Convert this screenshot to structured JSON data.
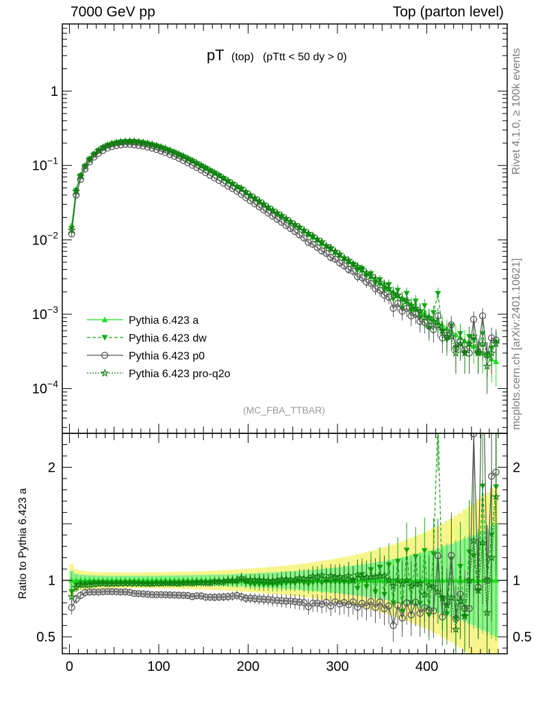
{
  "header": {
    "left": "7000 GeV pp",
    "right": "Top (parton level)"
  },
  "side_labels": {
    "rivet": "Rivet 4.1.0, ≥ 100k events",
    "mcplots": "mcplots.cern.ch [arXiv:2401.10621]"
  },
  "colors": {
    "a": "#22dd22",
    "dw": "#11aa11",
    "p0": "#555555",
    "pro_q2o": "#117711",
    "band_yellow": "#f7f58a",
    "band_green": "#8ef08e"
  },
  "chart_data": [
    {
      "type": "line",
      "title_main": "pT",
      "title_sub": "(top)",
      "title_cond": "(pTtt < 50 dy > 0)",
      "watermark": "(MC_FBA_TTBAR)",
      "yscale": "log",
      "ylim": [
        2.5e-05,
        8
      ],
      "xlim": [
        -8,
        490
      ],
      "ytick_labels": [
        "10^-4",
        "10^-3",
        "10^-2",
        "10^-1",
        "1"
      ],
      "ytick_values": [
        0.0001,
        0.001,
        0.01,
        0.1,
        1
      ],
      "legend_position": "bottom-left",
      "x": [
        2.5,
        7.5,
        12.5,
        17.5,
        22.5,
        27.5,
        32.5,
        37.5,
        42.5,
        47.5,
        52.5,
        57.5,
        62.5,
        67.5,
        72.5,
        77.5,
        82.5,
        87.5,
        92.5,
        97.5,
        102.5,
        107.5,
        112.5,
        117.5,
        122.5,
        127.5,
        132.5,
        137.5,
        142.5,
        147.5,
        152.5,
        157.5,
        162.5,
        167.5,
        172.5,
        177.5,
        182.5,
        187.5,
        192.5,
        197.5,
        202.5,
        207.5,
        212.5,
        217.5,
        222.5,
        227.5,
        232.5,
        237.5,
        242.5,
        247.5,
        252.5,
        257.5,
        262.5,
        267.5,
        272.5,
        277.5,
        282.5,
        287.5,
        292.5,
        297.5,
        302.5,
        307.5,
        312.5,
        317.5,
        322.5,
        327.5,
        332.5,
        337.5,
        342.5,
        347.5,
        352.5,
        357.5,
        362.5,
        367.5,
        372.5,
        377.5,
        382.5,
        387.5,
        392.5,
        397.5,
        402.5,
        407.5,
        412.5,
        417.5,
        422.5,
        427.5,
        432.5,
        437.5,
        442.5,
        447.5,
        452.5,
        457.5,
        462.5,
        467.5,
        472.5,
        477.5
      ],
      "series": [
        {
          "name": "Pythia 6.423 a",
          "key": "a",
          "marker": "triangle-up",
          "dash": "solid",
          "values": [
            0.0158,
            0.048,
            0.075,
            0.101,
            0.125,
            0.145,
            0.163,
            0.178,
            0.191,
            0.2,
            0.207,
            0.212,
            0.215,
            0.216,
            0.215,
            0.212,
            0.208,
            0.202,
            0.196,
            0.188,
            0.18,
            0.171,
            0.162,
            0.153,
            0.144,
            0.135,
            0.126,
            0.118,
            0.109,
            0.101,
            0.094,
            0.087,
            0.08,
            0.074,
            0.068,
            0.062,
            0.057,
            0.052,
            0.048,
            0.044,
            0.0398,
            0.0364,
            0.0332,
            0.0303,
            0.0276,
            0.0252,
            0.023,
            0.021,
            0.0191,
            0.0174,
            0.0159,
            0.0145,
            0.0132,
            0.012,
            0.0109,
            0.0099,
            0.009,
            0.0082,
            0.0075,
            0.0068,
            0.0062,
            0.0056,
            0.0051,
            0.0047,
            0.0042,
            0.0039,
            0.0035,
            0.0032,
            0.0029,
            0.0026,
            0.0024,
            0.0022,
            0.002,
            0.0018,
            0.00165,
            0.0015,
            0.00137,
            0.00124,
            0.00113,
            0.00103,
            0.00094,
            0.00085,
            0.00078,
            0.00071,
            0.00064,
            0.00059,
            0.00053,
            0.00049,
            0.00044,
            0.0004,
            0.00037,
            0.00033,
            0.0003,
            0.00028,
            0.00025,
            0.00023
          ]
        },
        {
          "name": "Pythia 6.423 dw",
          "key": "dw",
          "marker": "triangle-down",
          "dash": "dashed",
          "values": [
            0.0142,
            0.046,
            0.073,
            0.098,
            0.122,
            0.142,
            0.159,
            0.174,
            0.186,
            0.195,
            0.202,
            0.207,
            0.21,
            0.211,
            0.21,
            0.206,
            0.202,
            0.196,
            0.19,
            0.183,
            0.175,
            0.166,
            0.157,
            0.149,
            0.14,
            0.131,
            0.123,
            0.115,
            0.106,
            0.099,
            0.092,
            0.085,
            0.079,
            0.073,
            0.067,
            0.061,
            0.056,
            0.051,
            0.048,
            0.043,
            0.0385,
            0.0351,
            0.032,
            0.0291,
            0.0266,
            0.0242,
            0.0221,
            0.0203,
            0.0186,
            0.017,
            0.0155,
            0.0143,
            0.0129,
            0.0116,
            0.0107,
            0.0098,
            0.0088,
            0.0081,
            0.0074,
            0.0067,
            0.0061,
            0.0055,
            0.005,
            0.0047,
            0.0039,
            0.0041,
            0.0033,
            0.0035,
            0.0026,
            0.0029,
            0.0021,
            0.0025,
            0.0016,
            0.0021,
            0.0012,
            0.0019,
            0.0011,
            0.0015,
            0.0009,
            0.0013,
            0.00065,
            0.00105,
            0.0019,
            0.0006,
            0.00045,
            0.0007,
            0.00035,
            0.00055,
            0.0003,
            0.0005,
            0.00045,
            0.0003,
            0.00055,
            0.00028,
            0.00035,
            0.00042
          ]
        },
        {
          "name": "Pythia 6.423 p0",
          "key": "p0",
          "marker": "circle",
          "dash": "solid",
          "values": [
            0.012,
            0.04,
            0.065,
            0.09,
            0.112,
            0.13,
            0.146,
            0.16,
            0.172,
            0.18,
            0.186,
            0.19,
            0.193,
            0.193,
            0.19,
            0.187,
            0.183,
            0.177,
            0.171,
            0.164,
            0.157,
            0.149,
            0.141,
            0.133,
            0.125,
            0.117,
            0.109,
            0.101,
            0.094,
            0.087,
            0.08,
            0.074,
            0.068,
            0.063,
            0.058,
            0.053,
            0.049,
            0.045,
            0.041,
            0.037,
            0.0335,
            0.0305,
            0.0277,
            0.0252,
            0.0229,
            0.0208,
            0.0189,
            0.0172,
            0.0156,
            0.0142,
            0.0129,
            0.0117,
            0.0106,
            0.0092,
            0.0087,
            0.0079,
            0.0071,
            0.0066,
            0.0058,
            0.0055,
            0.0049,
            0.0045,
            0.004,
            0.0038,
            0.0032,
            0.0031,
            0.0027,
            0.0026,
            0.0022,
            0.0021,
            0.0018,
            0.0017,
            0.0012,
            0.0014,
            0.0011,
            0.0012,
            0.00095,
            0.001,
            0.0008,
            0.00078,
            0.00069,
            0.00062,
            0.00095,
            0.00048,
            0.00052,
            0.00072,
            0.00035,
            0.00043,
            0.00033,
            0.0003,
            0.00085,
            0.00031,
            0.00095,
            0.00028,
            0.00048,
            0.00045
          ]
        },
        {
          "name": "Pythia 6.423 pro-q2o",
          "key": "pro_q2o",
          "marker": "star",
          "dash": "dotted",
          "values": [
            0.0135,
            0.045,
            0.072,
            0.097,
            0.12,
            0.14,
            0.158,
            0.173,
            0.185,
            0.194,
            0.201,
            0.206,
            0.209,
            0.21,
            0.209,
            0.206,
            0.202,
            0.196,
            0.19,
            0.183,
            0.175,
            0.167,
            0.158,
            0.149,
            0.14,
            0.132,
            0.123,
            0.115,
            0.107,
            0.099,
            0.092,
            0.085,
            0.079,
            0.073,
            0.067,
            0.062,
            0.057,
            0.052,
            0.049,
            0.044,
            0.04,
            0.0365,
            0.0333,
            0.0303,
            0.0275,
            0.0251,
            0.023,
            0.0212,
            0.0193,
            0.0175,
            0.016,
            0.0148,
            0.0134,
            0.0122,
            0.0113,
            0.0102,
            0.0094,
            0.0083,
            0.0078,
            0.007,
            0.0064,
            0.0057,
            0.0053,
            0.0047,
            0.0044,
            0.004,
            0.0036,
            0.0033,
            0.003,
            0.0027,
            0.0025,
            0.0022,
            0.0019,
            0.0018,
            0.0016,
            0.0015,
            0.0013,
            0.0012,
            0.0011,
            0.0009,
            0.0009,
            0.0008,
            0.0007,
            0.0006,
            0.0005,
            0.0005,
            0.0003,
            0.0004,
            0.0003,
            0.0004,
            0.0005,
            0.0003,
            0.0004,
            0.0002,
            0.0003,
            0.0004
          ]
        }
      ]
    },
    {
      "type": "line",
      "ylabel": "Ratio to Pythia 6.423 a",
      "xlim": [
        -8,
        490
      ],
      "ylim": [
        0.35,
        2.3
      ],
      "ytick_values": [
        0.5,
        1,
        2
      ],
      "ytick_labels": [
        "0.5",
        "1",
        "2"
      ],
      "xtick_values": [
        0,
        100,
        200,
        300,
        400
      ],
      "xtick_labels": [
        "0",
        "100",
        "200",
        "300",
        "400"
      ],
      "reference": 1
    }
  ]
}
